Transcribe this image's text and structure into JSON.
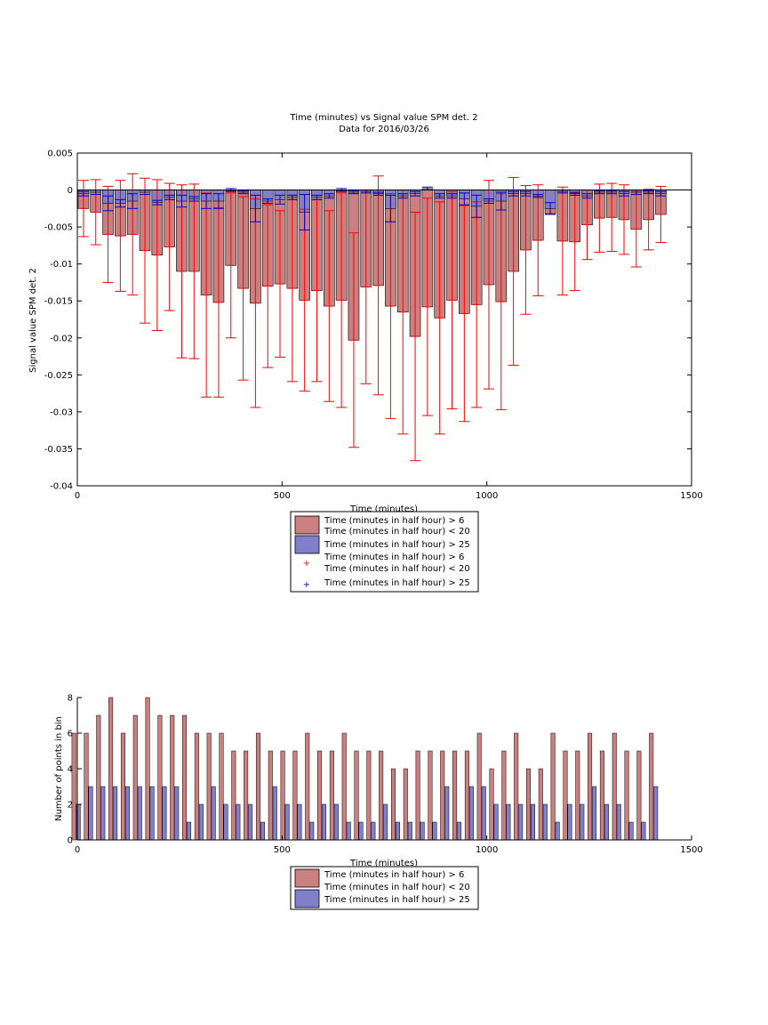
{
  "colors": {
    "red_fill": "#CC7F7F",
    "blue_fill": "#7F7FCC",
    "red_err": "#FF0000",
    "blue_err": "#0000CC",
    "axis": "#000000"
  },
  "chart_data": [
    {
      "type": "bar",
      "title": "Time (minutes) vs Signal value SPM det. 2",
      "subtitle": "Data for 2016/03/26",
      "xlabel": "Time (minutes)",
      "ylabel": "Signal value SPM det. 2",
      "xlim": [
        0,
        1500
      ],
      "ylim": [
        -0.04,
        0.005
      ],
      "xticks": [
        0,
        500,
        1000,
        1500
      ],
      "xtick_labels": [
        "0",
        "500",
        "1000",
        "1500"
      ],
      "yticks": [
        -0.04,
        -0.035,
        -0.03,
        -0.025,
        -0.02,
        -0.015,
        -0.01,
        -0.005,
        0,
        0.005
      ],
      "ytick_labels": [
        "-0.04",
        "-0.035",
        "-0.03",
        "-0.025",
        "-0.02",
        "-0.015",
        "-0.01",
        "-0.005",
        "0",
        "0.005"
      ],
      "grid": false,
      "legend": {
        "position": "below",
        "entries": [
          [
            "Time (minutes in half hour) > 6",
            "Time (minutes in half hour) < 20"
          ],
          [
            "Time (minutes in half hour) > 25"
          ],
          [
            "Time (minutes in half hour) > 6",
            "Time (minutes in half hour) < 20"
          ],
          [
            "Time (minutes in half hour) > 25"
          ]
        ]
      },
      "x": [
        15,
        45,
        75,
        105,
        135,
        165,
        195,
        225,
        255,
        285,
        315,
        345,
        375,
        405,
        435,
        465,
        495,
        525,
        555,
        585,
        615,
        645,
        675,
        705,
        735,
        765,
        795,
        825,
        855,
        885,
        915,
        945,
        975,
        1005,
        1035,
        1065,
        1095,
        1125,
        1155,
        1185,
        1215,
        1245,
        1275,
        1305,
        1335,
        1365,
        1395,
        1425
      ],
      "series": [
        {
          "name": "Time (minutes in half hour) > 6 Time (minutes in half hour) < 20",
          "values": [
            -0.0025,
            -0.003,
            -0.006,
            -0.0062,
            -0.006,
            -0.0082,
            -0.0088,
            -0.0077,
            -0.011,
            -0.011,
            -0.0142,
            -0.0152,
            -0.0102,
            -0.0133,
            -0.0153,
            -0.013,
            -0.0127,
            -0.0133,
            -0.0149,
            -0.0136,
            -0.0157,
            -0.0149,
            -0.0203,
            -0.0131,
            -0.0129,
            -0.0157,
            -0.0165,
            -0.0198,
            -0.0158,
            -0.0173,
            -0.0149,
            -0.0167,
            -0.0155,
            -0.0128,
            -0.0151,
            -0.011,
            -0.0081,
            -0.0068,
            -0.0032,
            -0.0069,
            -0.007,
            -0.0047,
            -0.0038,
            -0.0037,
            -0.004,
            -0.0053,
            -0.004,
            -0.0033
          ],
          "error": [
            0.0038,
            0.0044,
            0.0065,
            0.0075,
            0.0082,
            0.0098,
            0.0102,
            0.0086,
            0.0117,
            0.0118,
            0.0138,
            0.0128,
            0.0098,
            0.0124,
            0.0141,
            0.011,
            0.0099,
            0.0126,
            0.0123,
            0.0123,
            0.0129,
            0.0145,
            0.0145,
            0.0131,
            0.0148,
            0.0152,
            0.0165,
            0.0168,
            0.0147,
            0.0157,
            0.0147,
            0.0146,
            0.0139,
            0.0141,
            0.0146,
            0.0127,
            0.0087,
            0.0075,
            0.0,
            0.0073,
            0.0066,
            0.0047,
            0.0046,
            0.0046,
            0.0047,
            0.0051,
            0.0041,
            0.0038
          ]
        },
        {
          "name": "Time (minutes in half hour) > 25",
          "values": [
            -0.0005,
            -0.0003,
            -0.0018,
            -0.0018,
            -0.0015,
            -0.0003,
            -0.0017,
            -0.001,
            -0.0015,
            -0.0012,
            -0.0015,
            -0.0015,
            0.0,
            -0.0003,
            -0.0025,
            -0.0015,
            -0.0013,
            -0.001,
            -0.003,
            -0.001,
            -0.0008,
            0.0,
            -0.0003,
            -0.0002,
            -0.0005,
            -0.0025,
            -0.0008,
            -0.0005,
            0.0002,
            -0.0008,
            -0.0008,
            -0.0012,
            -0.0022,
            -0.0015,
            -0.0015,
            -0.0005,
            -0.0005,
            -0.0008,
            -0.0025,
            -0.0002,
            -0.0005,
            -0.0008,
            -0.0003,
            -0.0003,
            -0.0005,
            -0.0003,
            -0.0003,
            -0.0005
          ],
          "error": [
            0.0003,
            0.0003,
            0.001,
            0.0005,
            0.001,
            0.0003,
            0.0003,
            0.0003,
            0.0008,
            0.0003,
            0.001,
            0.001,
            0.0002,
            0.0002,
            0.0018,
            0.0003,
            0.0006,
            0.0003,
            0.0024,
            0.0003,
            0.0003,
            0.0002,
            0.0002,
            0.0002,
            0.0002,
            0.0018,
            0.0003,
            0.0003,
            0.0002,
            0.0003,
            0.0003,
            0.0008,
            0.0015,
            0.0003,
            0.0012,
            0.0003,
            0.0003,
            0.0002,
            0.0008,
            0.0002,
            0.0002,
            0.0003,
            0.0002,
            0.0002,
            0.0003,
            0.0003,
            0.0002,
            0.0003
          ]
        }
      ]
    },
    {
      "type": "bar",
      "title": "",
      "xlabel": "Time (minutes)",
      "ylabel": "Number of points in bin",
      "xlim": [
        0,
        1500
      ],
      "ylim": [
        0,
        8
      ],
      "xticks": [
        0,
        500,
        1000,
        1500
      ],
      "xtick_labels": [
        "0",
        "500",
        "1000",
        "1500"
      ],
      "yticks": [
        0,
        2,
        4,
        6,
        8
      ],
      "ytick_labels": [
        "0",
        "2",
        "4",
        "6",
        "8"
      ],
      "grid": false,
      "legend": {
        "position": "below",
        "entries": [
          [
            "Time (minutes in half hour) > 6"
          ],
          [
            "Time (minutes in half hour) < 20"
          ],
          [
            "Time (minutes in half hour) > 25"
          ]
        ]
      },
      "x": [
        15,
        45,
        75,
        105,
        135,
        165,
        195,
        225,
        255,
        285,
        315,
        345,
        375,
        405,
        435,
        465,
        495,
        525,
        555,
        585,
        615,
        645,
        675,
        705,
        735,
        765,
        795,
        825,
        855,
        885,
        915,
        945,
        975,
        1005,
        1035,
        1065,
        1095,
        1125,
        1155,
        1185,
        1215,
        1245,
        1275,
        1305,
        1335,
        1365,
        1395,
        1425
      ],
      "series": [
        {
          "name": "Time (minutes in half hour) > 6 Time (minutes in half hour) < 20",
          "values": [
            6,
            6,
            7,
            8,
            6,
            7,
            8,
            7,
            7,
            7,
            6,
            6,
            6,
            5,
            5,
            6,
            5,
            5,
            5,
            6,
            5,
            5,
            6,
            5,
            5,
            5,
            4,
            4,
            5,
            5,
            5,
            5,
            5,
            6,
            4,
            5,
            6,
            4,
            4,
            6,
            5,
            5,
            6,
            5,
            6,
            5,
            5,
            6
          ]
        },
        {
          "name": "Time (minutes in half hour) > 25",
          "values": [
            2,
            3,
            3,
            3,
            3,
            3,
            3,
            3,
            3,
            1,
            2,
            3,
            2,
            2,
            2,
            1,
            3,
            2,
            2,
            1,
            2,
            2,
            1,
            1,
            1,
            2,
            1,
            1,
            1,
            1,
            3,
            1,
            3,
            3,
            2,
            2,
            2,
            2,
            2,
            1,
            2,
            2,
            3,
            2,
            2,
            1,
            1,
            3
          ]
        }
      ]
    }
  ]
}
